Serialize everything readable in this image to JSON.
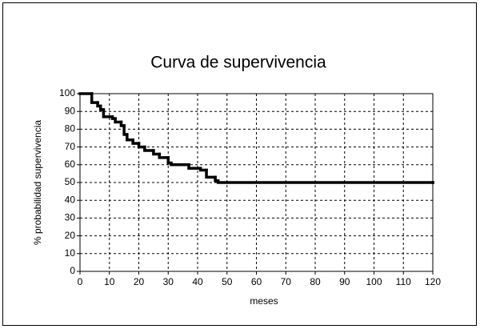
{
  "chart_data": {
    "type": "step",
    "title": "Curva de supervivencia",
    "x_label": "meses",
    "y_label": "% probabilidad supervivencia",
    "x": [
      0,
      4,
      6,
      7,
      8,
      11,
      12,
      14,
      15,
      16,
      18,
      20,
      22,
      25,
      27,
      30,
      31,
      37,
      41,
      43,
      46,
      47,
      120
    ],
    "values": [
      100,
      95,
      93,
      91,
      87,
      86,
      84,
      82,
      77,
      74,
      72,
      70,
      68,
      66,
      64,
      61,
      60,
      58,
      57,
      53,
      51,
      50,
      50
    ],
    "color": "#000000",
    "xlim": [
      0,
      120
    ],
    "xticks": [
      0,
      10,
      20,
      30,
      40,
      50,
      60,
      70,
      80,
      90,
      100,
      110,
      120
    ],
    "ylim": [
      0,
      100
    ],
    "yticks": [
      0,
      10,
      20,
      30,
      40,
      50,
      60,
      70,
      80,
      90,
      100
    ],
    "grid": true
  }
}
